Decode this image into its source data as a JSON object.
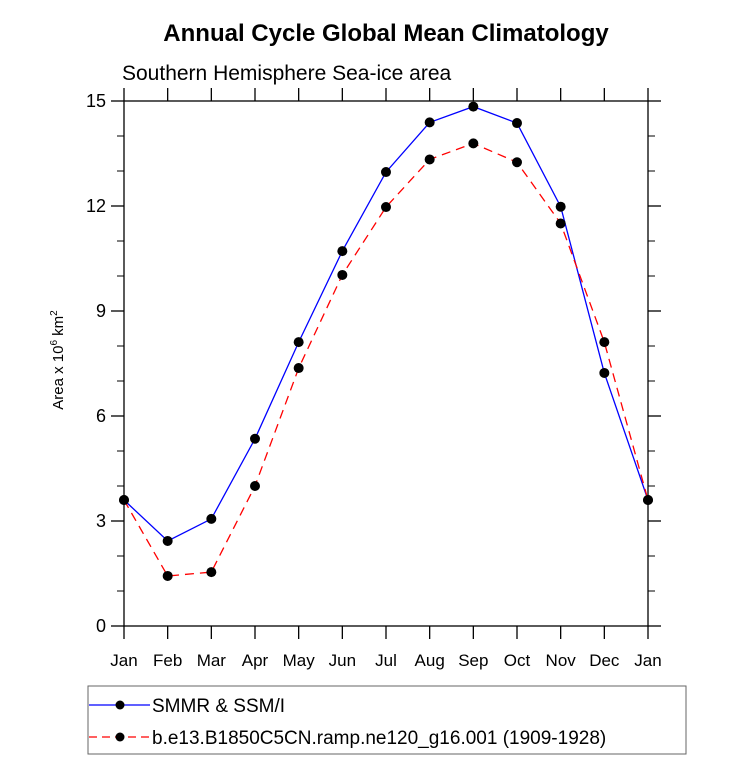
{
  "chart_data": {
    "type": "line",
    "title": "Annual Cycle Global Mean Climatology",
    "subtitle": "Southern Hemisphere Sea-ice area",
    "xlabel": "",
    "ylabel": "Area x 10",
    "ylabel_exp": "6",
    "ylabel_unit": " km",
    "ylabel_unit_exp": "2",
    "categories": [
      "Jan",
      "Feb",
      "Mar",
      "Apr",
      "May",
      "Jun",
      "Jul",
      "Aug",
      "Sep",
      "Oct",
      "Nov",
      "Dec",
      "Jan"
    ],
    "ylim": [
      0,
      15
    ],
    "yticks": [
      0,
      3,
      6,
      9,
      12,
      15
    ],
    "yticks_minor": [
      1,
      2,
      4,
      5,
      7,
      8,
      10,
      11,
      13,
      14
    ],
    "grid": false,
    "legend_position": "bottom",
    "series": [
      {
        "name": "SMMR & SSM/I",
        "color": "#0000ff",
        "line_style": "solid",
        "marker": "filled-circle",
        "marker_color": "#000000",
        "values": [
          3.6,
          2.43,
          3.06,
          5.35,
          8.11,
          10.71,
          12.97,
          14.39,
          14.84,
          14.37,
          11.98,
          7.23,
          3.6
        ]
      },
      {
        "name": "b.e13.B1850C5CN.ramp.ne120_g16.001 (1909-1928)",
        "color": "#ff0000",
        "line_style": "dashed",
        "marker": "filled-circle",
        "marker_color": "#000000",
        "values": [
          3.6,
          1.43,
          1.54,
          4.0,
          7.37,
          10.03,
          11.97,
          13.33,
          13.79,
          13.25,
          11.5,
          8.11,
          3.6
        ]
      }
    ]
  }
}
